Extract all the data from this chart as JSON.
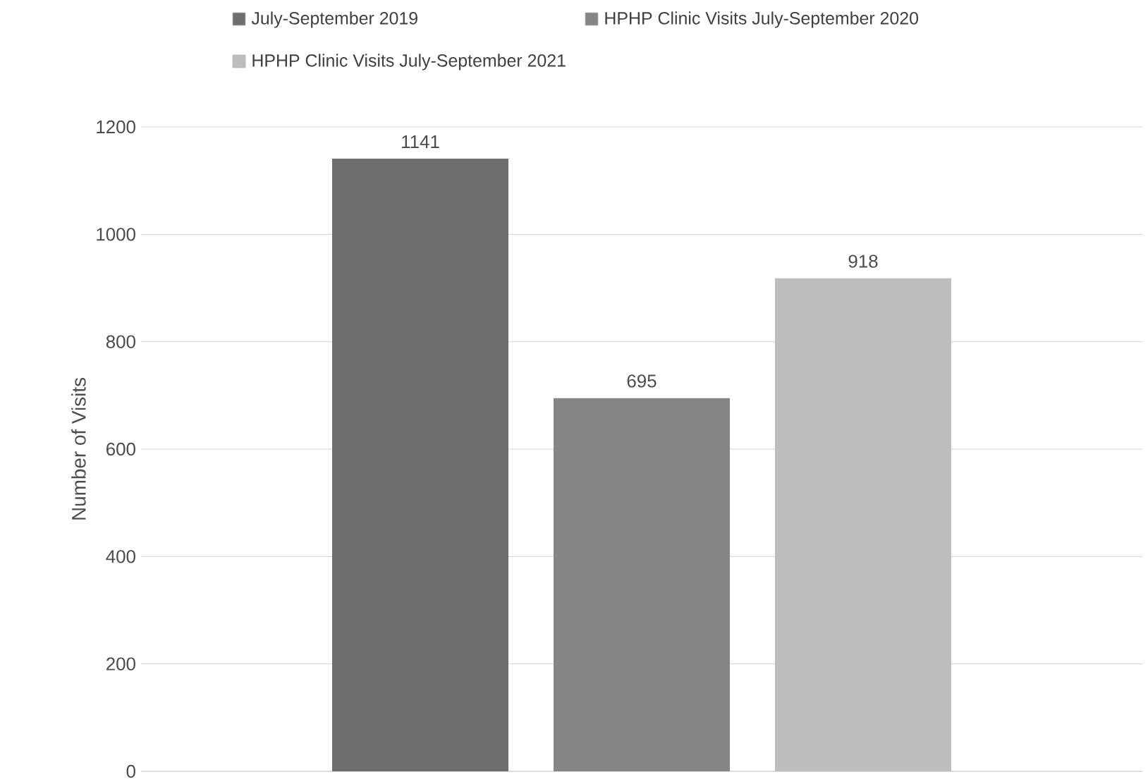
{
  "chart_data": {
    "type": "bar",
    "ylabel": "Number of Visits",
    "categories": [
      null
    ],
    "series": [
      {
        "name": "July-September 2019",
        "color": "#6e6e6e",
        "values": [
          1141
        ]
      },
      {
        "name": "HPHP Clinic Visits  July-September 2020",
        "color": "#858585",
        "values": [
          695
        ]
      },
      {
        "name": "HPHP Clinic Visits  July-September 2021",
        "color": "#bdbdbd",
        "values": [
          918
        ]
      }
    ],
    "ylim": [
      0,
      1200
    ],
    "yticks": [
      0,
      200,
      400,
      600,
      800,
      1000,
      1200
    ],
    "grid": "y",
    "legend": "top",
    "data_labels": true
  }
}
